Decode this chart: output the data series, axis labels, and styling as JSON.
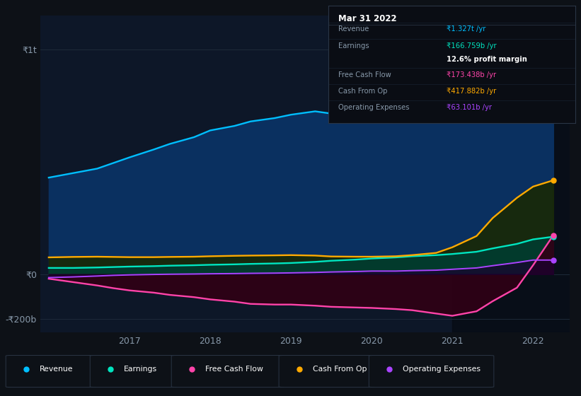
{
  "bg_color": "#0d1117",
  "chart_bg": "#0d1728",
  "grid_color": "#1e2a3a",
  "y_label_color": "#8899aa",
  "x_label_color": "#8899aa",
  "tooltip": {
    "title": "Mar 31 2022",
    "rows": [
      {
        "label": "Revenue",
        "value": "₹1.327t /yr",
        "color": "#00bfff"
      },
      {
        "label": "Earnings",
        "value": "₹166.759b /yr",
        "color": "#00e5c0"
      },
      {
        "label": "",
        "value": "12.6% profit margin",
        "color": "#ffffff"
      },
      {
        "label": "Free Cash Flow",
        "value": "₹173.438b /yr",
        "color": "#ff44aa"
      },
      {
        "label": "Cash From Op",
        "value": "₹417.882b /yr",
        "color": "#ffaa00"
      },
      {
        "label": "Operating Expenses",
        "value": "₹63.101b /yr",
        "color": "#aa44ff"
      }
    ]
  },
  "years": [
    2016.0,
    2016.3,
    2016.6,
    2016.8,
    2017.0,
    2017.3,
    2017.5,
    2017.8,
    2018.0,
    2018.3,
    2018.5,
    2018.8,
    2019.0,
    2019.3,
    2019.5,
    2019.8,
    2020.0,
    2020.3,
    2020.5,
    2020.8,
    2021.0,
    2021.3,
    2021.5,
    2021.8,
    2022.0,
    2022.25
  ],
  "revenue": [
    430,
    450,
    470,
    495,
    520,
    555,
    580,
    610,
    640,
    660,
    680,
    695,
    710,
    725,
    715,
    700,
    700,
    730,
    770,
    800,
    840,
    870,
    920,
    1000,
    1150,
    1327
  ],
  "earnings": [
    28,
    28,
    30,
    32,
    34,
    36,
    38,
    40,
    42,
    44,
    46,
    48,
    50,
    55,
    60,
    65,
    70,
    75,
    80,
    85,
    90,
    100,
    115,
    135,
    155,
    167
  ],
  "free_cash_flow": [
    -20,
    -35,
    -50,
    -62,
    -72,
    -82,
    -92,
    -102,
    -112,
    -122,
    -132,
    -135,
    -135,
    -140,
    -145,
    -148,
    -150,
    -155,
    -160,
    -175,
    -185,
    -165,
    -120,
    -60,
    40,
    173
  ],
  "cash_from_op": [
    75,
    77,
    78,
    77,
    76,
    76,
    77,
    78,
    80,
    82,
    83,
    84,
    85,
    83,
    79,
    78,
    78,
    80,
    85,
    95,
    120,
    170,
    250,
    340,
    390,
    418
  ],
  "operating_expenses": [
    -15,
    -12,
    -8,
    -5,
    -3,
    -1,
    0,
    1,
    2,
    3,
    4,
    5,
    6,
    8,
    10,
    12,
    14,
    14,
    16,
    18,
    22,
    28,
    38,
    52,
    63,
    63
  ],
  "colors": {
    "revenue": "#00bfff",
    "revenue_fill": "#0a3060",
    "earnings": "#00e5c0",
    "earnings_fill": "#003d30",
    "free_cash_flow": "#ff44aa",
    "free_cash_flow_fill": "#300015",
    "cash_from_op": "#ffaa00",
    "cash_from_op_fill": "#302000",
    "operating_expenses": "#aa44ff",
    "opex_fill": "#1a0030"
  },
  "ylim": [
    -260,
    1150
  ],
  "yticks": [
    -200,
    0,
    1000
  ],
  "ytick_labels": [
    "-₹200b",
    "₹0",
    "₹1t"
  ],
  "xlim": [
    2015.9,
    2022.45
  ],
  "xticks": [
    2017,
    2018,
    2019,
    2020,
    2021,
    2022
  ],
  "forecast_start": 2021.0,
  "legend": [
    {
      "label": "Revenue",
      "color": "#00bfff"
    },
    {
      "label": "Earnings",
      "color": "#00e5c0"
    },
    {
      "label": "Free Cash Flow",
      "color": "#ff44aa"
    },
    {
      "label": "Cash From Op",
      "color": "#ffaa00"
    },
    {
      "label": "Operating Expenses",
      "color": "#aa44ff"
    }
  ]
}
